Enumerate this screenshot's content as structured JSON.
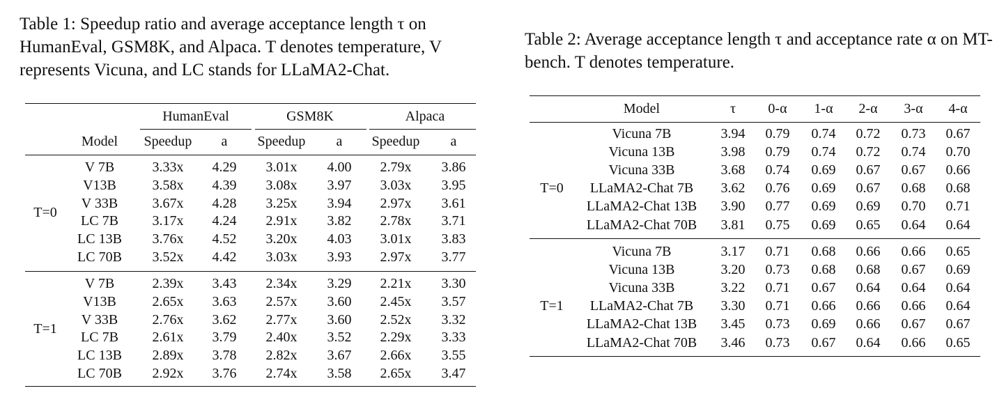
{
  "table1": {
    "caption": "Table 1: Speedup ratio and average acceptance length τ on HumanEval, GSM8K, and Alpaca. T denotes temperature, V represents Vicuna, and LC stands for LLaMA2-Chat.",
    "groups": [
      "HumanEval",
      "GSM8K",
      "Alpaca"
    ],
    "subheaders": [
      "Model",
      "Speedup",
      "a",
      "Speedup",
      "a",
      "Speedup",
      "a"
    ],
    "blocks": [
      {
        "label": "T=0",
        "rows": [
          [
            "V 7B",
            "3.33x",
            "4.29",
            "3.01x",
            "4.00",
            "2.79x",
            "3.86"
          ],
          [
            "V13B",
            "3.58x",
            "4.39",
            "3.08x",
            "3.97",
            "3.03x",
            "3.95"
          ],
          [
            "V 33B",
            "3.67x",
            "4.28",
            "3.25x",
            "3.94",
            "2.97x",
            "3.61"
          ],
          [
            "LC 7B",
            "3.17x",
            "4.24",
            "2.91x",
            "3.82",
            "2.78x",
            "3.71"
          ],
          [
            "LC 13B",
            "3.76x",
            "4.52",
            "3.20x",
            "4.03",
            "3.01x",
            "3.83"
          ],
          [
            "LC 70B",
            "3.52x",
            "4.42",
            "3.03x",
            "3.93",
            "2.97x",
            "3.77"
          ]
        ]
      },
      {
        "label": "T=1",
        "rows": [
          [
            "V 7B",
            "2.39x",
            "3.43",
            "2.34x",
            "3.29",
            "2.21x",
            "3.30"
          ],
          [
            "V13B",
            "2.65x",
            "3.63",
            "2.57x",
            "3.60",
            "2.45x",
            "3.57"
          ],
          [
            "V 33B",
            "2.76x",
            "3.62",
            "2.77x",
            "3.60",
            "2.52x",
            "3.32"
          ],
          [
            "LC 7B",
            "2.61x",
            "3.79",
            "2.40x",
            "3.52",
            "2.29x",
            "3.33"
          ],
          [
            "LC 13B",
            "2.89x",
            "3.78",
            "2.82x",
            "3.67",
            "2.66x",
            "3.55"
          ],
          [
            "LC 70B",
            "2.92x",
            "3.76",
            "2.74x",
            "3.58",
            "2.65x",
            "3.47"
          ]
        ]
      }
    ]
  },
  "table2": {
    "caption": "Table 2: Average acceptance length τ and acceptance rate α on MT-bench. T denotes temperature.",
    "headers": [
      "Model",
      "τ",
      "0-α",
      "1-α",
      "2-α",
      "3-α",
      "4-α"
    ],
    "blocks": [
      {
        "label": "T=0",
        "rows": [
          [
            "Vicuna 7B",
            "3.94",
            "0.79",
            "0.74",
            "0.72",
            "0.73",
            "0.67"
          ],
          [
            "Vicuna 13B",
            "3.98",
            "0.79",
            "0.74",
            "0.72",
            "0.74",
            "0.70"
          ],
          [
            "Vicuna 33B",
            "3.68",
            "0.74",
            "0.69",
            "0.67",
            "0.67",
            "0.66"
          ],
          [
            "LLaMA2-Chat 7B",
            "3.62",
            "0.76",
            "0.69",
            "0.67",
            "0.68",
            "0.68"
          ],
          [
            "LLaMA2-Chat 13B",
            "3.90",
            "0.77",
            "0.69",
            "0.69",
            "0.70",
            "0.71"
          ],
          [
            "LLaMA2-Chat 70B",
            "3.81",
            "0.75",
            "0.69",
            "0.65",
            "0.64",
            "0.64"
          ]
        ]
      },
      {
        "label": "T=1",
        "rows": [
          [
            "Vicuna 7B",
            "3.17",
            "0.71",
            "0.68",
            "0.66",
            "0.66",
            "0.65"
          ],
          [
            "Vicuna 13B",
            "3.20",
            "0.73",
            "0.68",
            "0.68",
            "0.67",
            "0.69"
          ],
          [
            "Vicuna 33B",
            "3.22",
            "0.71",
            "0.67",
            "0.64",
            "0.64",
            "0.64"
          ],
          [
            "LLaMA2-Chat 7B",
            "3.30",
            "0.71",
            "0.66",
            "0.66",
            "0.66",
            "0.64"
          ],
          [
            "LLaMA2-Chat 13B",
            "3.45",
            "0.73",
            "0.69",
            "0.66",
            "0.67",
            "0.67"
          ],
          [
            "LLaMA2-Chat 70B",
            "3.46",
            "0.73",
            "0.67",
            "0.64",
            "0.66",
            "0.65"
          ]
        ]
      }
    ]
  }
}
